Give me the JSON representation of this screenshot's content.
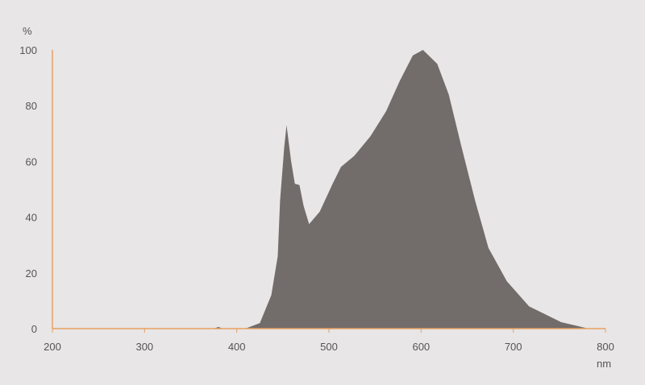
{
  "chart_data": {
    "type": "area",
    "title": "",
    "xlabel": "nm",
    "ylabel": "%",
    "xlim": [
      200,
      800
    ],
    "ylim": [
      0,
      100
    ],
    "xticks": [
      200,
      300,
      400,
      500,
      600,
      700,
      800
    ],
    "yticks": [
      0,
      20,
      40,
      60,
      80,
      100
    ],
    "grid": false,
    "colors": {
      "fill": "#726c6a",
      "axis": "#e8a060",
      "background": "#e8e6e6"
    },
    "x": [
      375,
      380,
      385,
      405,
      411,
      425,
      437.5,
      444.5,
      447,
      451.5,
      454,
      459,
      463,
      468,
      472.5,
      478.5,
      490,
      504,
      513,
      527.5,
      545,
      562,
      577,
      591,
      602,
      617.5,
      630,
      644,
      658.5,
      673,
      693,
      717,
      752,
      778,
      780
    ],
    "y": [
      0,
      0.6,
      0,
      0,
      0.2,
      2,
      12,
      26,
      46,
      65,
      73,
      60,
      52,
      51.5,
      44,
      37.5,
      42,
      52,
      58,
      62,
      69,
      78,
      89,
      98,
      100,
      95,
      84,
      65,
      46,
      29,
      17,
      8,
      2.3,
      0.3,
      0
    ]
  }
}
